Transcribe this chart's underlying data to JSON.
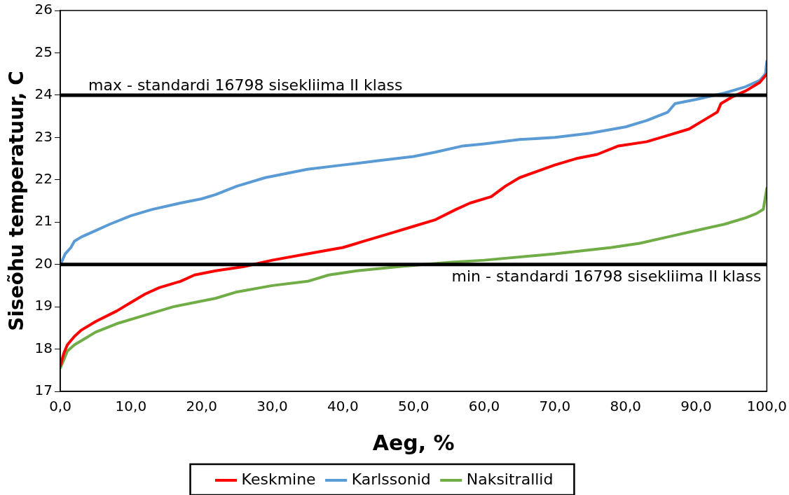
{
  "chart_data": {
    "type": "line",
    "xlabel": "Aeg, %",
    "ylabel": "Siseõhu temperatuur, C",
    "xlim": [
      0,
      100
    ],
    "ylim": [
      17,
      26
    ],
    "xticks": [
      {
        "value": 0,
        "label": "0,0"
      },
      {
        "value": 10,
        "label": "10,0"
      },
      {
        "value": 20,
        "label": "20,0"
      },
      {
        "value": 30,
        "label": "30,0"
      },
      {
        "value": 40,
        "label": "40,0"
      },
      {
        "value": 50,
        "label": "50,0"
      },
      {
        "value": 60,
        "label": "60,0"
      },
      {
        "value": 70,
        "label": "70,0"
      },
      {
        "value": 80,
        "label": "80,0"
      },
      {
        "value": 90,
        "label": "90,0"
      },
      {
        "value": 100,
        "label": "100,0"
      }
    ],
    "yticks": [
      17,
      18,
      19,
      20,
      21,
      22,
      23,
      24,
      25,
      26
    ],
    "grid": false,
    "legend": "bottom",
    "marker": "none",
    "line_style": "solid",
    "ref_lines": [
      {
        "axis": "y",
        "value": 24,
        "label": "max - standardi 16798 sisekliima II klass",
        "color": "#000000"
      },
      {
        "axis": "y",
        "value": 20,
        "label": "min - standardi 16798 sisekliima II klass",
        "color": "#000000"
      }
    ],
    "series": [
      {
        "name": "Keskmine",
        "color": "#ff0000",
        "x": [
          0,
          0.5,
          1,
          2,
          3,
          5,
          8,
          10,
          12,
          14,
          17,
          19,
          22,
          26,
          30,
          35,
          40,
          43,
          47,
          50,
          53,
          56,
          58,
          61,
          63,
          65,
          70,
          73,
          76,
          79,
          83,
          86,
          89,
          91,
          93,
          93.5,
          95,
          97,
          99,
          100
        ],
        "values": [
          17.6,
          17.9,
          18.1,
          18.3,
          18.45,
          18.65,
          18.9,
          19.1,
          19.3,
          19.45,
          19.6,
          19.75,
          19.85,
          19.95,
          20.1,
          20.25,
          20.4,
          20.55,
          20.75,
          20.9,
          21.05,
          21.3,
          21.45,
          21.6,
          21.85,
          22.05,
          22.35,
          22.5,
          22.6,
          22.8,
          22.9,
          23.05,
          23.2,
          23.4,
          23.6,
          23.8,
          23.95,
          24.1,
          24.3,
          24.5
        ]
      },
      {
        "name": "Karlssonid",
        "color": "#5b9bd5",
        "x": [
          0,
          0.3,
          0.7,
          1.5,
          2,
          3,
          5,
          7,
          10,
          13,
          17,
          20,
          22,
          25,
          29,
          35,
          40,
          45,
          50,
          53,
          57,
          60,
          65,
          70,
          75,
          80,
          83,
          86,
          87,
          90,
          94,
          97,
          99,
          99.8,
          100
        ],
        "values": [
          20.0,
          20.1,
          20.25,
          20.4,
          20.55,
          20.65,
          20.8,
          20.95,
          21.15,
          21.3,
          21.45,
          21.55,
          21.65,
          21.85,
          22.05,
          22.25,
          22.35,
          22.45,
          22.55,
          22.65,
          22.8,
          22.85,
          22.95,
          23.0,
          23.1,
          23.25,
          23.4,
          23.6,
          23.8,
          23.9,
          24.05,
          24.2,
          24.35,
          24.5,
          24.8
        ]
      },
      {
        "name": "Naksitrallid",
        "color": "#70ad47",
        "x": [
          0,
          0.5,
          1,
          2,
          3,
          5,
          8,
          12,
          16,
          22,
          25,
          30,
          35,
          38,
          42,
          48,
          55,
          60,
          70,
          78,
          82,
          86,
          90,
          94,
          97,
          98.5,
          99.5,
          100
        ],
        "values": [
          17.55,
          17.75,
          17.95,
          18.1,
          18.2,
          18.4,
          18.6,
          18.8,
          19.0,
          19.2,
          19.35,
          19.5,
          19.6,
          19.75,
          19.85,
          19.95,
          20.05,
          20.1,
          20.25,
          20.4,
          20.5,
          20.65,
          20.8,
          20.95,
          21.1,
          21.2,
          21.3,
          21.8
        ]
      }
    ]
  }
}
